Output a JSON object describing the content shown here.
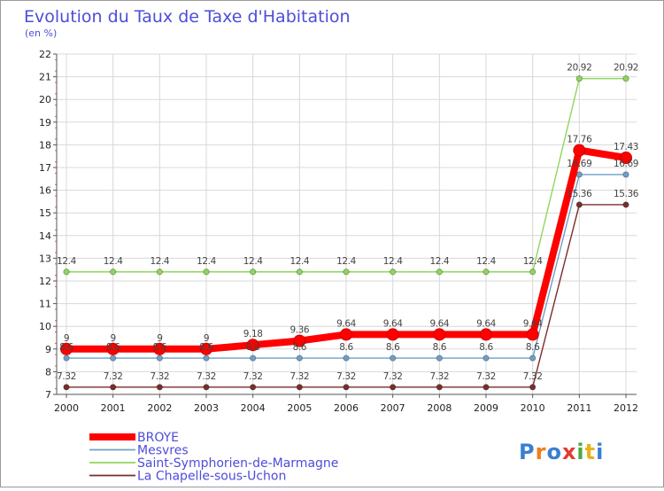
{
  "chart_data": {
    "type": "line",
    "title": "Evolution du Taux de Taxe d'Habitation",
    "subtitle": "(en %)",
    "x": [
      "2000",
      "2001",
      "2002",
      "2003",
      "2004",
      "2005",
      "2006",
      "2007",
      "2008",
      "2009",
      "2010",
      "2011",
      "2012"
    ],
    "ylim": [
      7,
      22
    ],
    "yticks": [
      7,
      8,
      9,
      10,
      11,
      12,
      13,
      14,
      15,
      16,
      17,
      18,
      19,
      20,
      21,
      22
    ],
    "grid": true,
    "legend_position": "bottom-left",
    "series": [
      {
        "name": "BROYE",
        "color": "#ff0000",
        "values": [
          9,
          9,
          9,
          9,
          9.18,
          9.36,
          9.64,
          9.64,
          9.64,
          9.64,
          9.64,
          17.76,
          17.43
        ],
        "labels": [
          "9",
          "9",
          "9",
          "9",
          "9.18",
          "9.36",
          "9.64",
          "9.64",
          "9.64",
          "9.64",
          "9.64",
          "17.76",
          "17.43"
        ]
      },
      {
        "name": "Mesvres",
        "color": "#6f9fc8",
        "values": [
          8.6,
          8.6,
          8.6,
          8.6,
          8.6,
          8.6,
          8.6,
          8.6,
          8.6,
          8.6,
          8.6,
          16.69,
          16.69
        ],
        "labels": [
          "8.6",
          "8.6",
          "8.6",
          "8.6",
          "8.6",
          "8.6",
          "8.6",
          "8.6",
          "8.6",
          "8.6",
          "8.6",
          "16.69",
          "16.69"
        ]
      },
      {
        "name": "Saint-Symphorien-de-Marmagne",
        "color": "#8fd65a",
        "values": [
          12.4,
          12.4,
          12.4,
          12.4,
          12.4,
          12.4,
          12.4,
          12.4,
          12.4,
          12.4,
          12.4,
          20.92,
          20.92
        ],
        "labels": [
          "12.4",
          "12.4",
          "12.4",
          "12.4",
          "12.4",
          "12.4",
          "12.4",
          "12.4",
          "12.4",
          "12.4",
          "12.4",
          "20.92",
          "20.92"
        ]
      },
      {
        "name": "La Chapelle-sous-Uchon",
        "color": "#7a2d2d",
        "values": [
          7.32,
          7.32,
          7.32,
          7.32,
          7.32,
          7.32,
          7.32,
          7.32,
          7.32,
          7.32,
          7.32,
          15.36,
          15.36
        ],
        "labels": [
          "7.32",
          "7.32",
          "7.32",
          "7.32",
          "7.32",
          "7.32",
          "7.32",
          "7.32",
          "7.32",
          "7.32",
          "7.32",
          "15.36",
          "15.36"
        ]
      }
    ]
  },
  "brand": {
    "text": "Proxiti",
    "letters": [
      "P",
      "r",
      "o",
      "x",
      "i",
      "t",
      "i"
    ],
    "letter_colors": [
      "#3a7fd0",
      "#ef7d1a",
      "#3a7fd0",
      "#e33b2e",
      "#4aa84a",
      "#e9b21c",
      "#3a7fd0"
    ]
  }
}
